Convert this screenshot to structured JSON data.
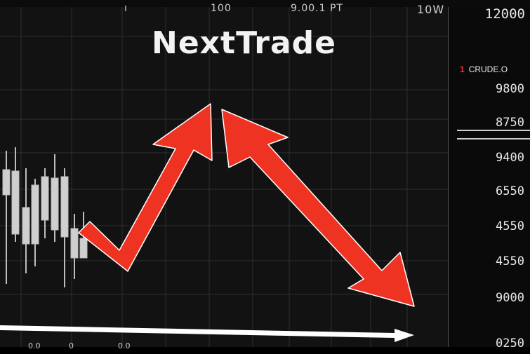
{
  "app": {
    "title": "NextTrade"
  },
  "top_bar": {
    "labels": [
      "100",
      "9.00.1 PT",
      "10W"
    ]
  },
  "price_scale": {
    "header": "12000",
    "ticker_marker": "1",
    "ticker_text": "CRUDE.O",
    "levels": [
      "9800",
      "8750",
      "9400",
      "6550",
      "4550",
      "4550",
      "9000",
      "0250"
    ]
  },
  "bottom_bar": {
    "labels": [
      "0.0",
      "0.0",
      "0"
    ]
  },
  "colors": {
    "background": "#000000",
    "chart_bg": "#121212",
    "grid": "#2f2f2f",
    "arrow": "#ef3323",
    "candle_body": "#cfcfcf",
    "axis_arrow": "#ffffff"
  },
  "icons": {
    "trend_up": "red-arrow-up-icon",
    "trend_down": "red-arrow-down-icon",
    "time_axis": "white-arrow-right-icon"
  }
}
